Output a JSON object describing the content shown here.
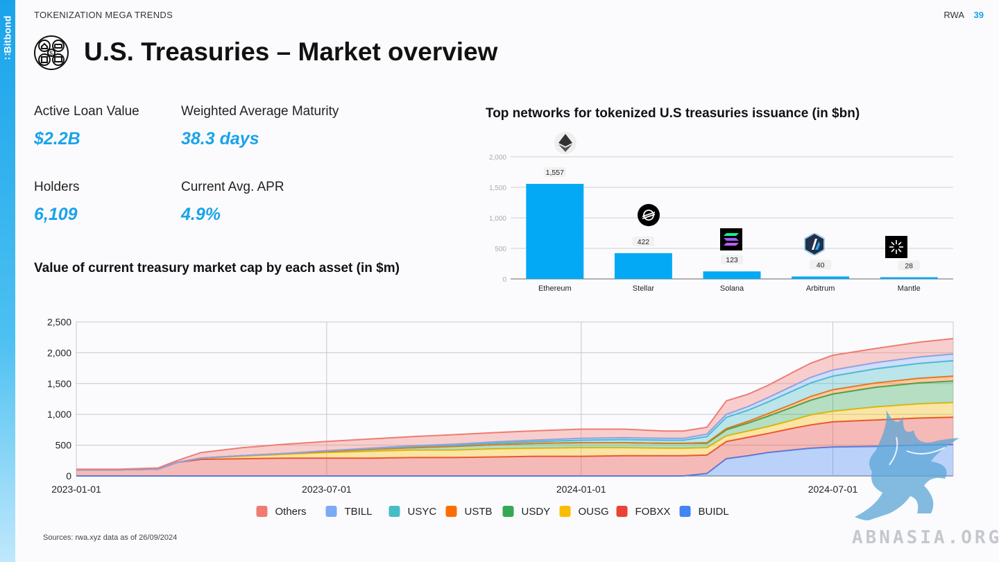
{
  "brand": {
    "name": "∷Bitbond",
    "color": "#1aa3ea"
  },
  "header": {
    "section": "TOKENIZATION MEGA TRENDS",
    "tag": "RWA",
    "page": "39",
    "title": "U.S. Treasuries – Market overview",
    "icon": "real-world-assets-icon"
  },
  "metrics": {
    "active_loan": {
      "label": "Active Loan Value",
      "value": "$2.2B"
    },
    "maturity": {
      "label": "Weighted Average Maturity",
      "value": "38.3 days"
    },
    "holders": {
      "label": "Holders",
      "value": "6,109"
    },
    "apr": {
      "label": "Current Avg. APR",
      "value": "4.9%"
    }
  },
  "source": "Sources: rwa.xyz data as of 26/09/2024",
  "watermark": "ABNASIA.ORG",
  "chart_data": [
    {
      "type": "bar",
      "title": "Top networks for tokenized U.S treasuries issuance (in $bn)",
      "categories": [
        "Ethereum",
        "Stellar",
        "Solana",
        "Arbitrum",
        "Mantle"
      ],
      "values": [
        1557,
        422,
        123,
        40,
        28
      ],
      "data_labels": [
        "1,557",
        "422",
        "123",
        "40",
        "28"
      ],
      "icons": [
        "ethereum-icon",
        "stellar-icon",
        "solana-icon",
        "arbitrum-icon",
        "mantle-icon"
      ],
      "ylim": [
        0,
        2000
      ],
      "yticks": [
        0,
        500,
        1000,
        1500,
        2000
      ],
      "ytick_labels": [
        "0",
        "500",
        "1,000",
        "1,500",
        "2,000"
      ],
      "color": "#03a9f4",
      "grid": true
    },
    {
      "type": "area",
      "stacked": true,
      "title": "Value of current treasury market cap by each asset (in $m)",
      "x": [
        "2023-01-01",
        "2023-02-01",
        "2023-03-01",
        "2023-03-15",
        "2023-04-01",
        "2023-05-01",
        "2023-06-01",
        "2023-07-01",
        "2023-08-01",
        "2023-09-01",
        "2023-10-01",
        "2023-11-01",
        "2023-12-01",
        "2024-01-01",
        "2024-02-01",
        "2024-03-01",
        "2024-03-15",
        "2024-04-01",
        "2024-04-15",
        "2024-05-01",
        "2024-05-15",
        "2024-06-01",
        "2024-06-15",
        "2024-07-01",
        "2024-08-01",
        "2024-09-01",
        "2024-09-26"
      ],
      "xticks": [
        "2023-01-01",
        "2023-07-01",
        "2024-01-01",
        "2024-07-01"
      ],
      "ylim": [
        0,
        2500
      ],
      "yticks": [
        0,
        500,
        1000,
        1500,
        2000,
        2500
      ],
      "ytick_labels": [
        "0",
        "500",
        "1,000",
        "1,500",
        "2,000",
        "2,500"
      ],
      "grid": true,
      "legend_position": "bottom",
      "series": [
        {
          "name": "BUIDL",
          "color": "#4285f4",
          "values": [
            0,
            0,
            0,
            0,
            0,
            0,
            0,
            0,
            0,
            0,
            0,
            0,
            0,
            0,
            0,
            0,
            0,
            40,
            280,
            330,
            380,
            420,
            450,
            470,
            480,
            500,
            510
          ]
        },
        {
          "name": "FOBXX",
          "color": "#ea4335",
          "values": [
            100,
            100,
            110,
            220,
            270,
            280,
            290,
            290,
            290,
            300,
            300,
            310,
            320,
            320,
            330,
            330,
            330,
            300,
            280,
            300,
            310,
            350,
            380,
            410,
            430,
            440,
            445
          ]
        },
        {
          "name": "OUSG",
          "color": "#fbbc04",
          "values": [
            0,
            0,
            0,
            0,
            20,
            40,
            60,
            90,
            110,
            120,
            120,
            130,
            130,
            140,
            130,
            120,
            120,
            120,
            90,
            100,
            110,
            130,
            160,
            170,
            210,
            230,
            235
          ]
        },
        {
          "name": "USDY",
          "color": "#34a853",
          "values": [
            0,
            0,
            0,
            0,
            0,
            10,
            15,
            20,
            30,
            40,
            60,
            70,
            80,
            80,
            80,
            80,
            80,
            70,
            100,
            130,
            170,
            210,
            240,
            280,
            320,
            340,
            350
          ]
        },
        {
          "name": "USTB",
          "color": "#ff6d01",
          "values": [
            0,
            0,
            0,
            0,
            0,
            0,
            0,
            0,
            0,
            0,
            0,
            0,
            0,
            0,
            0,
            0,
            0,
            10,
            20,
            30,
            40,
            50,
            60,
            70,
            70,
            75,
            80
          ]
        },
        {
          "name": "USYC",
          "color": "#46bdc6",
          "values": [
            0,
            0,
            0,
            0,
            0,
            0,
            0,
            10,
            15,
            20,
            20,
            25,
            30,
            40,
            50,
            50,
            50,
            100,
            180,
            180,
            190,
            210,
            220,
            220,
            230,
            240,
            250
          ]
        },
        {
          "name": "TBILL",
          "color": "#7baaf7",
          "values": [
            0,
            0,
            0,
            0,
            0,
            0,
            0,
            0,
            5,
            10,
            15,
            20,
            25,
            30,
            30,
            30,
            30,
            40,
            50,
            60,
            70,
            80,
            90,
            100,
            100,
            105,
            110
          ]
        },
        {
          "name": "Others",
          "color": "#f07b72",
          "values": [
            10,
            10,
            20,
            30,
            90,
            130,
            150,
            150,
            150,
            150,
            155,
            150,
            150,
            150,
            140,
            120,
            120,
            110,
            220,
            200,
            200,
            220,
            230,
            240,
            230,
            240,
            250
          ]
        }
      ]
    }
  ]
}
